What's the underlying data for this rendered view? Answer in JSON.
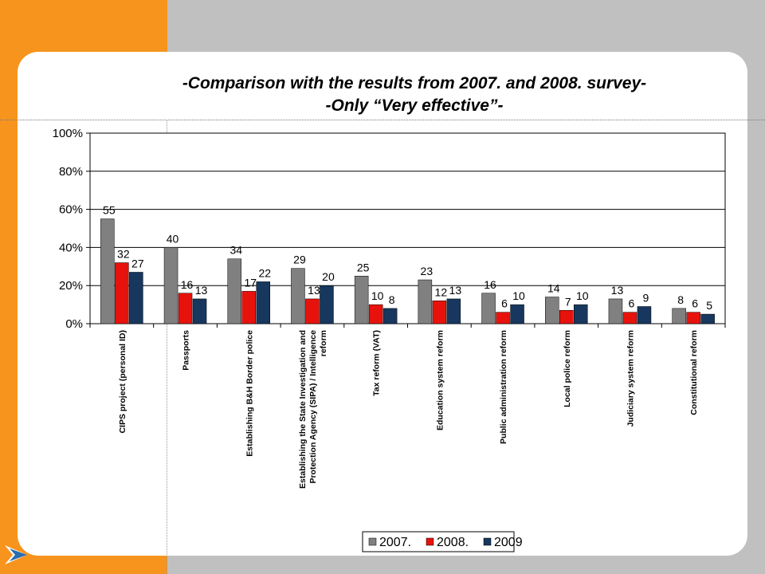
{
  "slide": {
    "title_line1": "-Comparison with the results from 2007. and 2008. survey-",
    "title_line2": "-Only “Very effective”-",
    "colors": {
      "background": "#c0c0c0",
      "accent_bar": "#f7941d",
      "panel": "#ffffff"
    },
    "logo_icon": "arrow-logo-icon"
  },
  "chart_data": {
    "type": "bar",
    "categories": [
      "CIPS project (personal ID)",
      "Passports",
      "Establishing B&H Border police",
      "Establishing the State Investigation and Protection Agency (SIPA) / Intelligence reform",
      "Tax reform (VAT)",
      "Education system reform",
      "Public administration reform",
      "Local police reform",
      "Judiciary system reform",
      "Constitutional reform"
    ],
    "series": [
      {
        "name": "2007.",
        "color": "#808080",
        "values": [
          55,
          40,
          34,
          29,
          25,
          23,
          16,
          14,
          13,
          8
        ]
      },
      {
        "name": "2008.",
        "color": "#e8120c",
        "values": [
          32,
          16,
          17,
          13,
          10,
          12,
          6,
          7,
          6,
          6
        ]
      },
      {
        "name": "2009",
        "color": "#17375e",
        "values": [
          27,
          13,
          22,
          20,
          8,
          13,
          10,
          10,
          9,
          5
        ]
      }
    ],
    "ylim": [
      0,
      100
    ],
    "yticks": [
      "0%",
      "20%",
      "40%",
      "60%",
      "80%",
      "100%"
    ],
    "grid": true,
    "legend_position": "bottom-right",
    "data_labels": true
  }
}
